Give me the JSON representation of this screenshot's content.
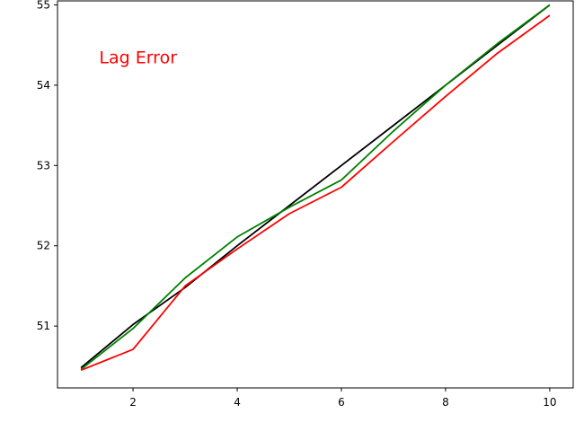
{
  "chart_data": {
    "type": "line",
    "title": "",
    "xlabel": "",
    "ylabel": "",
    "xlim": [
      0.55,
      10.45
    ],
    "ylim": [
      50.23,
      55.05
    ],
    "xticks": [
      2,
      4,
      6,
      8,
      10
    ],
    "yticks": [
      51,
      52,
      53,
      54,
      55
    ],
    "grid": false,
    "annotation": {
      "text": "Lag Error",
      "x": 1.35,
      "y": 54.27,
      "color": "#ff0000"
    },
    "x": [
      1,
      2,
      3,
      4,
      5,
      6,
      7,
      8,
      9,
      10
    ],
    "series": [
      {
        "color": "#000000",
        "values": [
          50.48,
          51.02,
          51.48,
          52.0,
          52.5,
          53.0,
          53.5,
          54.0,
          54.5,
          55.0
        ]
      },
      {
        "color": "#008000",
        "values": [
          50.46,
          50.97,
          51.6,
          52.11,
          52.48,
          52.82,
          53.43,
          54.0,
          54.52,
          55.0
        ]
      },
      {
        "color": "#ff0000",
        "values": [
          50.45,
          50.71,
          51.5,
          51.96,
          52.4,
          52.73,
          53.3,
          53.86,
          54.4,
          54.87
        ]
      }
    ]
  }
}
